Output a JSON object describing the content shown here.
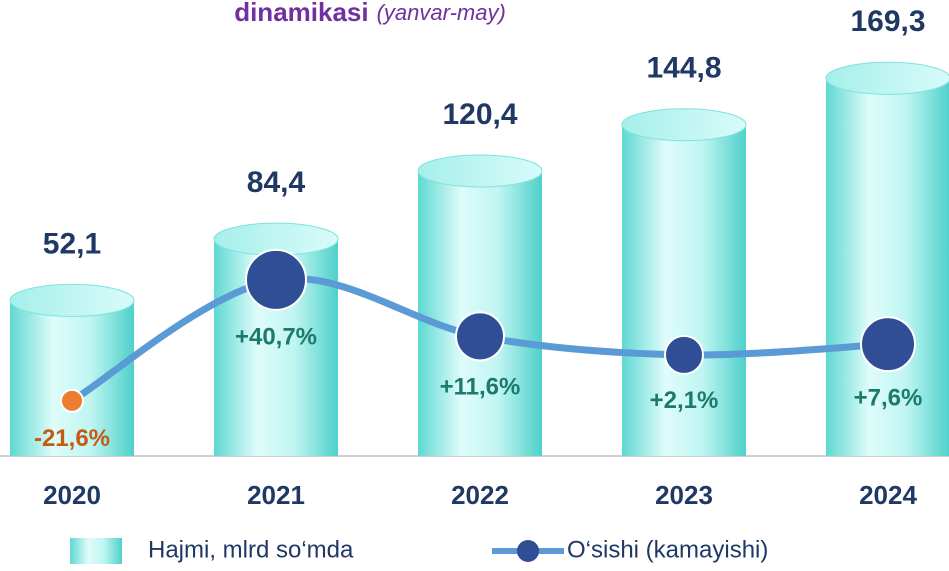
{
  "chart_data": {
    "type": "bar",
    "title": "dinamikasi",
    "subtitle": "(yanvar-may)",
    "categories": [
      "2020",
      "2021",
      "2022",
      "2023",
      "2024"
    ],
    "series": [
      {
        "name": "Hajmi, mlrd so‘mda",
        "type": "bar",
        "color": "#8ee9e4",
        "values": [
          52.1,
          84.4,
          120.4,
          144.8,
          169.3
        ],
        "value_labels": [
          "52,1",
          "84,4",
          "120,4",
          "144,8",
          "169,3"
        ]
      },
      {
        "name": "O‘sishi (kamayishi)",
        "type": "line",
        "axis": "y2",
        "color": "#5b9bd5",
        "marker_color": "#2f4e96",
        "point_colors": [
          "#ed7d31",
          "#2f4e96",
          "#2f4e96",
          "#2f4e96",
          "#2f4e96"
        ],
        "label_colors": [
          "#c55a11",
          "#1b7a6b",
          "#1b7a6b",
          "#1b7a6b",
          "#1b7a6b"
        ],
        "marker_sizes": [
          11,
          30,
          24,
          19,
          27
        ],
        "values": [
          -21.6,
          40.7,
          11.6,
          2.1,
          7.6
        ],
        "value_labels": [
          "-21,6%",
          "+40,7%",
          "+11,6%",
          "+2,1%",
          "+7,6%"
        ]
      }
    ],
    "ylim": [
      -30,
      180
    ],
    "y2lim": [
      -50,
      155
    ],
    "grid": false,
    "legend": "bottom"
  }
}
